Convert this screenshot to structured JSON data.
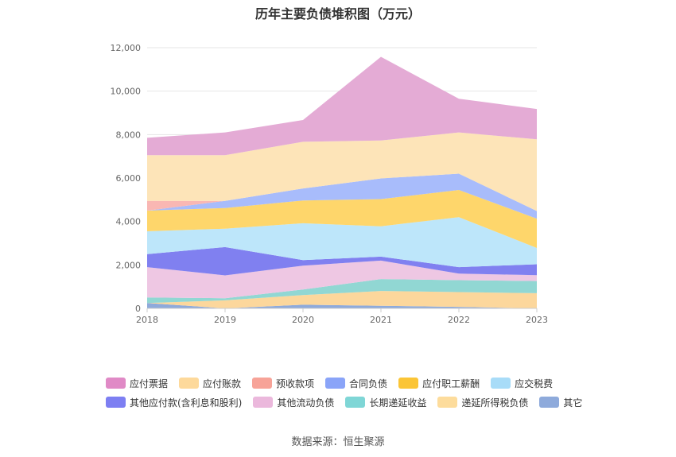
{
  "title": "历年主要负债堆积图（万元）",
  "source": "数据来源：恒生聚源",
  "chart_data": {
    "type": "area",
    "stacked": true,
    "categories": [
      "2018",
      "2019",
      "2020",
      "2021",
      "2022",
      "2023"
    ],
    "ylim": [
      0,
      12000
    ],
    "yticks": [
      0,
      2000,
      4000,
      6000,
      8000,
      10000,
      12000
    ],
    "ytick_labels": [
      "0",
      "2,000",
      "4,000",
      "6,000",
      "8,000",
      "10,000",
      "12,000"
    ],
    "grid": true,
    "legend_position": "bottom",
    "series": [
      {
        "name": "其它",
        "color": "#8eaadb",
        "values": [
          250,
          0,
          170,
          120,
          70,
          0
        ]
      },
      {
        "name": "递延所得税负债",
        "color": "#fcd79c",
        "values": [
          0,
          370,
          440,
          680,
          680,
          700
        ]
      },
      {
        "name": "长期递延收益",
        "color": "#91d7d3",
        "values": [
          250,
          100,
          260,
          550,
          550,
          560
        ]
      },
      {
        "name": "其他流动负债",
        "color": "#eec7e3",
        "values": [
          1400,
          1050,
          1100,
          850,
          300,
          270
        ]
      },
      {
        "name": "其他应付款(含利息和股利)",
        "color": "#8080f0",
        "values": [
          600,
          1300,
          250,
          180,
          300,
          500
        ]
      },
      {
        "name": "应交税费",
        "color": "#bde6fa",
        "values": [
          1050,
          850,
          1700,
          1400,
          2300,
          750
        ]
      },
      {
        "name": "应付职工薪酬",
        "color": "#fed66b",
        "values": [
          950,
          950,
          1050,
          1250,
          1250,
          1350
        ]
      },
      {
        "name": "合同负债",
        "color": "#a8bcfb",
        "values": [
          0,
          330,
          550,
          950,
          750,
          350
        ]
      },
      {
        "name": "预收款项",
        "color": "#f9b7b3",
        "values": [
          450,
          0,
          0,
          0,
          0,
          0
        ]
      },
      {
        "name": "应付账款",
        "color": "#fde4b8",
        "values": [
          2100,
          2100,
          2150,
          1750,
          1900,
          3300
        ]
      },
      {
        "name": "应付票据",
        "color": "#e4abd5",
        "values": [
          800,
          1050,
          1000,
          3850,
          1550,
          1400
        ]
      }
    ]
  },
  "legend": {
    "rows": [
      [
        {
          "name": "应付票据",
          "color": "#e08ac6"
        },
        {
          "name": "应付账款",
          "color": "#fdd99b"
        },
        {
          "name": "预收款项",
          "color": "#f7a398"
        },
        {
          "name": "合同负债",
          "color": "#8aa4f8"
        },
        {
          "name": "应付职工薪酬",
          "color": "#fbc536"
        },
        {
          "name": "应交税费",
          "color": "#a8dcf8"
        }
      ],
      [
        {
          "name": "其他应付款(含利息和股利)",
          "color": "#7d7ff2"
        },
        {
          "name": "其他流动负债",
          "color": "#ebb8dc"
        },
        {
          "name": "长期递延收益",
          "color": "#7fd6d6"
        },
        {
          "name": "递延所得税负债",
          "color": "#fddc9c"
        },
        {
          "name": "其它",
          "color": "#8eaadb"
        }
      ]
    ]
  }
}
